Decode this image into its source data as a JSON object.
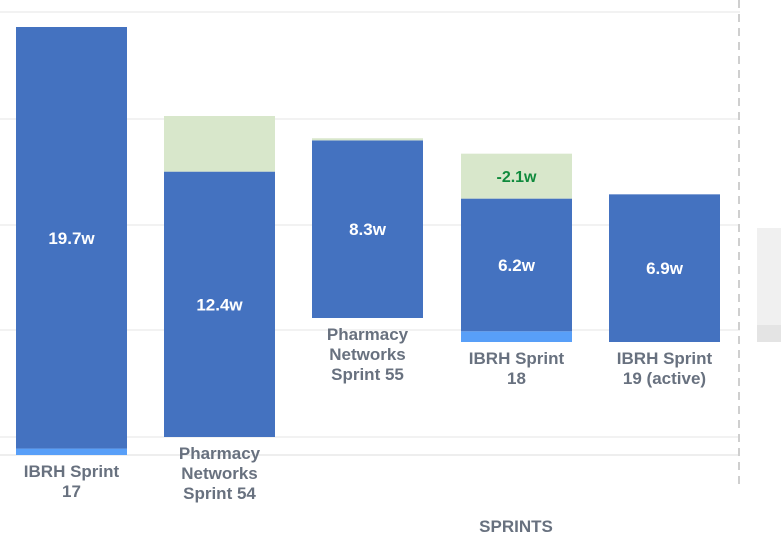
{
  "chart_data": {
    "type": "bar",
    "stacked": true,
    "xlabel": "SPRINTS",
    "unit": "w",
    "categories": [
      "IBRH Sprint 17",
      "Pharmacy Networks Sprint 54",
      "Pharmacy Networks Sprint 55",
      "IBRH Sprint 18",
      "IBRH Sprint 19 (active)"
    ],
    "category_lines": [
      [
        "IBRH Sprint",
        "17"
      ],
      [
        "Pharmacy",
        "Networks",
        "Sprint 54"
      ],
      [
        "Pharmacy",
        "Networks",
        "Sprint 55"
      ],
      [
        "IBRH Sprint",
        "18"
      ],
      [
        "IBRH Sprint",
        "19 (active)"
      ]
    ],
    "series": [
      {
        "values": [
          0.3,
          0,
          0,
          0.5,
          0
        ],
        "color": "#589ff8"
      },
      {
        "values": [
          19.7,
          12.4,
          8.3,
          6.2,
          6.9
        ],
        "color": "#4472c0"
      },
      {
        "values": [
          0,
          2.6,
          0.1,
          2.1,
          0
        ],
        "color": "#d8e7cb"
      }
    ],
    "value_labels": [
      "19.7w",
      "12.4w",
      "8.3w",
      "6.2w",
      "6.9w"
    ],
    "change_labels": [
      "",
      "",
      "",
      "-2.1w",
      ""
    ],
    "grid": true
  }
}
